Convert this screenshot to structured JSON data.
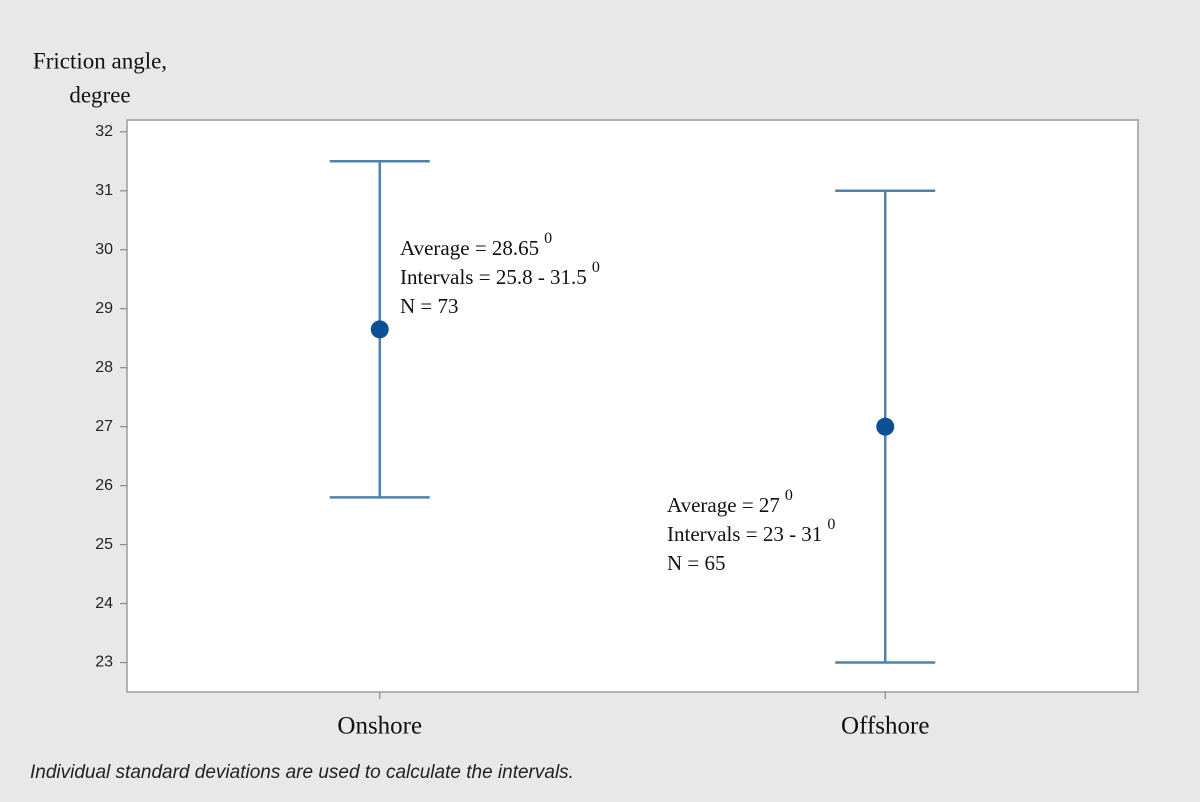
{
  "chart_data": {
    "type": "interval",
    "y_label_lines": [
      "Friction angle,",
      "degree"
    ],
    "categories": [
      "Onshore",
      "Offshore"
    ],
    "means": [
      28.65,
      27
    ],
    "lower": [
      25.8,
      23
    ],
    "upper": [
      31.5,
      31
    ],
    "line_color": "#4f81ad",
    "point_color": "#0b4f94",
    "ylim": [
      22.5,
      32.2
    ],
    "yticks": [
      23,
      24,
      25,
      26,
      27,
      28,
      29,
      30,
      31,
      32
    ],
    "annotations": [
      {
        "lines": [
          {
            "text": "Average = 28.65",
            "sup": "0"
          },
          {
            "text": "Intervals = 25.8 - 31.5",
            "sup": "0"
          },
          {
            "text": "N = 73"
          }
        ]
      },
      {
        "lines": [
          {
            "text": "Average = 27",
            "sup": "0"
          },
          {
            "text": "Intervals = 23 - 31",
            "sup": "0"
          },
          {
            "text": "N = 65"
          }
        ]
      }
    ],
    "footnote": "Individual standard deviations are used to calculate the intervals."
  }
}
